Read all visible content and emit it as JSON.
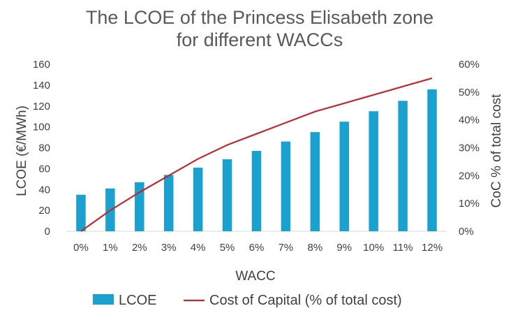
{
  "chart_data": {
    "type": "bar",
    "title_lines": [
      "The LCOE of the Princess Elisabeth zone",
      "for different WACCs"
    ],
    "xlabel": "WACC",
    "ylabel": "LCOE (€/MWh)",
    "y2label": "CoC % of total cost",
    "categories": [
      "0%",
      "1%",
      "2%",
      "3%",
      "4%",
      "5%",
      "6%",
      "7%",
      "8%",
      "9%",
      "10%",
      "11%",
      "12%"
    ],
    "ylim": [
      0,
      160
    ],
    "yticks": [
      "0",
      "20",
      "40",
      "60",
      "80",
      "100",
      "120",
      "140",
      "160"
    ],
    "y2lim": [
      0,
      60
    ],
    "y2ticks": [
      "0%",
      "10%",
      "20%",
      "30%",
      "40%",
      "50%",
      "60%"
    ],
    "grid": false,
    "legend_position": "bottom",
    "series": [
      {
        "name": "LCOE",
        "type": "bar",
        "axis": "left",
        "color": "#1ba1d0",
        "values": [
          35,
          41,
          47,
          54,
          61,
          69,
          77,
          86,
          95,
          105,
          115,
          125,
          136
        ]
      },
      {
        "name": "Cost of Capital (% of total cost)",
        "type": "line",
        "axis": "right",
        "color": "#c0282d",
        "values": [
          0,
          7.5,
          14,
          20,
          26,
          31,
          35,
          39,
          43,
          46,
          49,
          52,
          55
        ]
      }
    ]
  }
}
